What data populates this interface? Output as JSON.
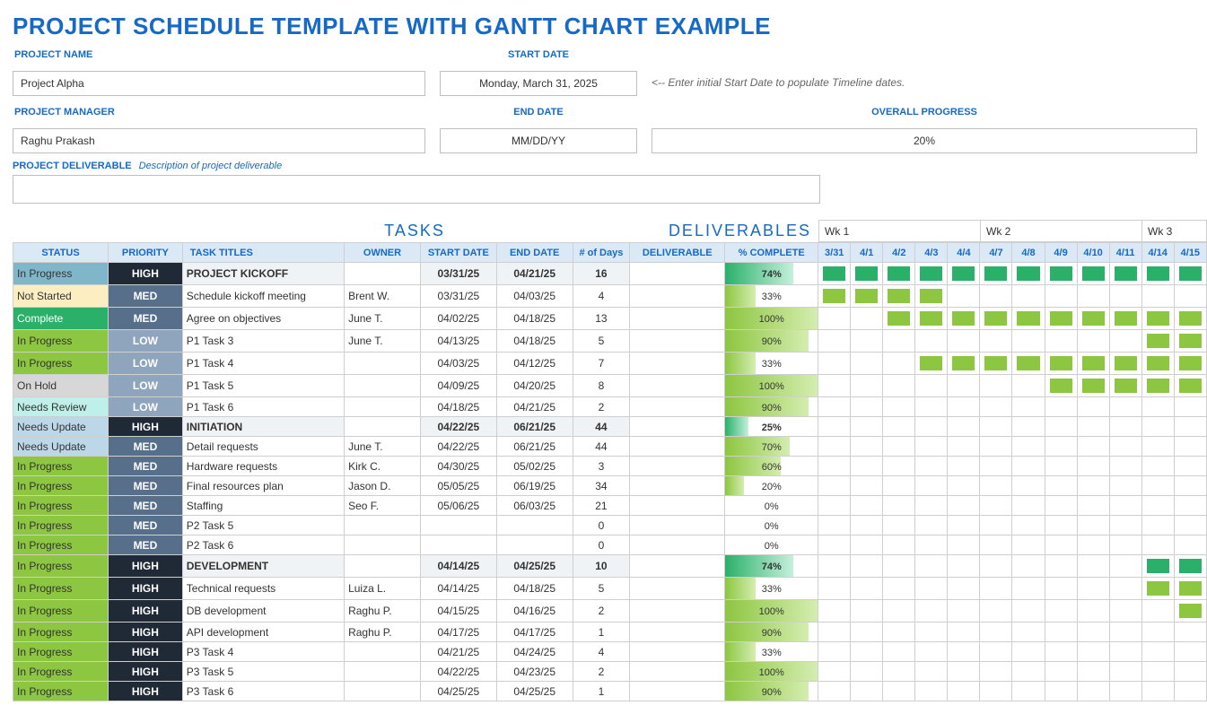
{
  "page_title": "PROJECT SCHEDULE TEMPLATE WITH GANTT CHART EXAMPLE",
  "labels": {
    "project_name": "PROJECT NAME",
    "start_date": "START DATE",
    "project_manager": "PROJECT MANAGER",
    "end_date": "END DATE",
    "overall_progress": "OVERALL PROGRESS",
    "deliverable": "PROJECT DELIVERABLE",
    "deliverable_desc": "Description of project deliverable",
    "hint": "<-- Enter initial Start Date to populate Timeline dates."
  },
  "meta": {
    "project_name": "Project Alpha",
    "start_date": "Monday, March 31, 2025",
    "project_manager": "Raghu Prakash",
    "end_date": "MM/DD/YY",
    "overall_progress": "20%"
  },
  "section_headers": {
    "tasks": "TASKS",
    "deliverables": "DELIVERABLES"
  },
  "columns": {
    "status": "STATUS",
    "priority": "PRIORITY",
    "task_titles": "TASK TITLES",
    "owner": "OWNER",
    "start_date": "START DATE",
    "end_date": "END DATE",
    "days": "# of Days",
    "deliverable": "DELIVERABLE",
    "pct": "% COMPLETE"
  },
  "weeks": [
    "Wk 1",
    "Wk 2",
    "Wk 3"
  ],
  "dates": [
    "3/31",
    "4/1",
    "4/2",
    "4/3",
    "4/4",
    "4/7",
    "4/8",
    "4/9",
    "4/10",
    "4/11",
    "4/14",
    "4/15"
  ],
  "palette": {
    "header_blue": "#dbe9f6",
    "accent": "#1569c7",
    "deliv_hdr": "#2c8bc7",
    "task_bar": "#8dc641",
    "phase_bar": "#2bb06a",
    "pri_high": "#1f2a36",
    "pri_med": "#586f8c",
    "pri_low": "#8fa4bd"
  },
  "status_classes": {
    "In Progress": "st-inprog",
    "Not Started": "st-notstarted",
    "Complete": "st-complete",
    "On Hold": "st-onhold",
    "Needs Review": "st-review",
    "Needs Update": "st-update"
  },
  "rows": [
    {
      "phase": true,
      "status": "In Progress",
      "status_cls": "st-inprog-blue",
      "pri": "HIGH",
      "title": "PROJECT KICKOFF",
      "owner": "",
      "sd": "03/31/25",
      "ed": "04/21/25",
      "days": "16",
      "pct": 74,
      "g": [
        0,
        12
      ]
    },
    {
      "status": "Not Started",
      "pri": "MED",
      "title": "Schedule kickoff meeting",
      "owner": "Brent W.",
      "sd": "03/31/25",
      "ed": "04/03/25",
      "days": "4",
      "pct": 33,
      "g": [
        0,
        4
      ]
    },
    {
      "status": "Complete",
      "pri": "MED",
      "title": "Agree on objectives",
      "owner": "June T.",
      "sd": "04/02/25",
      "ed": "04/18/25",
      "days": "13",
      "pct": 100,
      "g": [
        2,
        12
      ]
    },
    {
      "status": "In Progress",
      "pri": "LOW",
      "title": "P1 Task 3",
      "owner": "June T.",
      "sd": "04/13/25",
      "ed": "04/18/25",
      "days": "5",
      "pct": 90,
      "g": [
        10,
        12
      ]
    },
    {
      "status": "In Progress",
      "pri": "LOW",
      "title": "P1 Task 4",
      "owner": "",
      "sd": "04/03/25",
      "ed": "04/12/25",
      "days": "7",
      "pct": 33,
      "g": [
        3,
        12
      ]
    },
    {
      "status": "On Hold",
      "pri": "LOW",
      "title": "P1 Task 5",
      "owner": "",
      "sd": "04/09/25",
      "ed": "04/20/25",
      "days": "8",
      "pct": 100,
      "g": [
        7,
        12
      ]
    },
    {
      "status": "Needs Review",
      "pri": "LOW",
      "title": "P1 Task 6",
      "owner": "",
      "sd": "04/18/25",
      "ed": "04/21/25",
      "days": "2",
      "pct": 90,
      "g": null
    },
    {
      "phase": true,
      "status": "Needs Update",
      "status_cls": "st-update",
      "pri": "HIGH",
      "title": "INITIATION",
      "owner": "",
      "sd": "04/22/25",
      "ed": "06/21/25",
      "days": "44",
      "pct": 25,
      "g": null
    },
    {
      "status": "Needs Update",
      "pri": "MED",
      "title": "Detail requests",
      "owner": "June T.",
      "sd": "04/22/25",
      "ed": "06/21/25",
      "days": "44",
      "pct": 70,
      "g": null
    },
    {
      "status": "In Progress",
      "pri": "MED",
      "title": "Hardware requests",
      "owner": "Kirk C.",
      "sd": "04/30/25",
      "ed": "05/02/25",
      "days": "3",
      "pct": 60,
      "g": null
    },
    {
      "status": "In Progress",
      "pri": "MED",
      "title": "Final resources plan",
      "owner": "Jason D.",
      "sd": "05/05/25",
      "ed": "06/19/25",
      "days": "34",
      "pct": 20,
      "g": null
    },
    {
      "status": "In Progress",
      "pri": "MED",
      "title": "Staffing",
      "owner": "Seo F.",
      "sd": "05/06/25",
      "ed": "06/03/25",
      "days": "21",
      "pct": 0,
      "g": null
    },
    {
      "status": "In Progress",
      "pri": "MED",
      "title": "P2 Task 5",
      "owner": "",
      "sd": "",
      "ed": "",
      "days": "0",
      "pct": 0,
      "g": null
    },
    {
      "status": "In Progress",
      "pri": "MED",
      "title": "P2 Task 6",
      "owner": "",
      "sd": "",
      "ed": "",
      "days": "0",
      "pct": 0,
      "g": null
    },
    {
      "phase": true,
      "status": "In Progress",
      "status_cls": "st-inprog",
      "pri": "HIGH",
      "title": "DEVELOPMENT",
      "owner": "",
      "sd": "04/14/25",
      "ed": "04/25/25",
      "days": "10",
      "pct": 74,
      "g": [
        10,
        12
      ]
    },
    {
      "status": "In Progress",
      "pri": "HIGH",
      "title": "Technical requests",
      "owner": "Luiza L.",
      "sd": "04/14/25",
      "ed": "04/18/25",
      "days": "5",
      "pct": 33,
      "g": [
        10,
        12
      ]
    },
    {
      "status": "In Progress",
      "pri": "HIGH",
      "title": "DB development",
      "owner": "Raghu P.",
      "sd": "04/15/25",
      "ed": "04/16/25",
      "days": "2",
      "pct": 100,
      "g": [
        11,
        12
      ]
    },
    {
      "status": "In Progress",
      "pri": "HIGH",
      "title": "API development",
      "owner": "Raghu P.",
      "sd": "04/17/25",
      "ed": "04/17/25",
      "days": "1",
      "pct": 90,
      "g": null
    },
    {
      "status": "In Progress",
      "pri": "HIGH",
      "title": "P3 Task 4",
      "owner": "",
      "sd": "04/21/25",
      "ed": "04/24/25",
      "days": "4",
      "pct": 33,
      "g": null
    },
    {
      "status": "In Progress",
      "pri": "HIGH",
      "title": "P3 Task 5",
      "owner": "",
      "sd": "04/22/25",
      "ed": "04/23/25",
      "days": "2",
      "pct": 100,
      "g": null
    },
    {
      "status": "In Progress",
      "pri": "HIGH",
      "title": "P3 Task 6",
      "owner": "",
      "sd": "04/25/25",
      "ed": "04/25/25",
      "days": "1",
      "pct": 90,
      "g": null
    }
  ]
}
